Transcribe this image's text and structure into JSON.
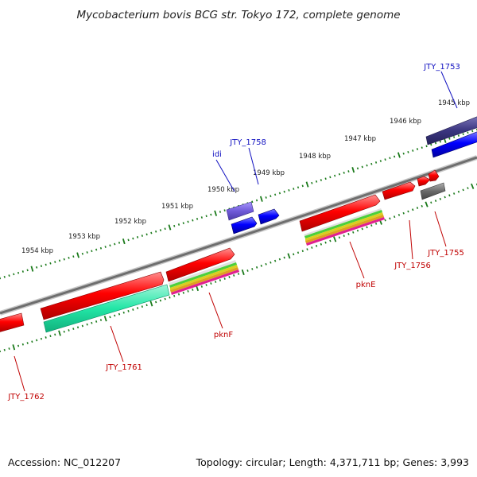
{
  "title": "Mycobacterium bovis BCG str. Tokyo 172, complete genome",
  "footer": {
    "accession": "Accession: NC_012207",
    "summary": "Topology: circular; Length: 4,371,711 bp; Genes: 3,993"
  },
  "colors": {
    "backbone": "#7a7a7a",
    "tick": "#1a7a1a",
    "forward_gene": "#ee0000",
    "reverse_gene": "#0000ee",
    "rna_gene": "#7060d0",
    "label_top": "#1010c0",
    "label_bottom": "#c00000"
  },
  "kbp_labels": [
    "1945 kbp",
    "1946 kbp",
    "1947 kbp",
    "1948 kbp",
    "1949 kbp",
    "1950 kbp",
    "1951 kbp",
    "1952 kbp",
    "1953 kbp",
    "1954 kbp"
  ],
  "genes_top_labels": [
    "JTY_1753",
    "JTY_1758",
    "idi"
  ],
  "genes_bottom_labels": [
    "JTY_1755",
    "JTY_1756",
    "pknE",
    "pknF",
    "JTY_1761",
    "JTY_1762"
  ]
}
